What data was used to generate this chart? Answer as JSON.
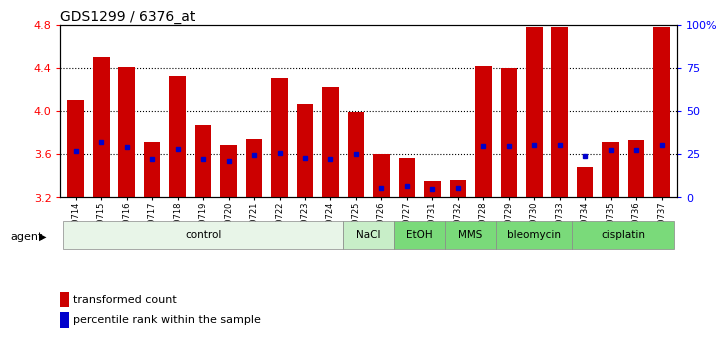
{
  "title": "GDS1299 / 6376_at",
  "samples": [
    "GSM40714",
    "GSM40715",
    "GSM40716",
    "GSM40717",
    "GSM40718",
    "GSM40719",
    "GSM40720",
    "GSM40721",
    "GSM40722",
    "GSM40723",
    "GSM40724",
    "GSM40725",
    "GSM40726",
    "GSM40727",
    "GSM40731",
    "GSM40732",
    "GSM40728",
    "GSM40729",
    "GSM40730",
    "GSM40733",
    "GSM40734",
    "GSM40735",
    "GSM40736",
    "GSM40737"
  ],
  "bar_values": [
    4.1,
    4.5,
    4.41,
    3.71,
    4.33,
    3.87,
    3.69,
    3.74,
    4.31,
    4.07,
    4.22,
    3.99,
    3.6,
    3.57,
    3.35,
    3.36,
    4.42,
    4.4,
    4.78,
    4.78,
    3.48,
    3.71,
    3.73,
    4.78
  ],
  "percentile_values": [
    3.63,
    3.71,
    3.67,
    3.56,
    3.65,
    3.56,
    3.54,
    3.59,
    3.61,
    3.57,
    3.56,
    3.6,
    3.29,
    3.31,
    3.28,
    3.29,
    3.68,
    3.68,
    3.69,
    3.69,
    3.58,
    3.64,
    3.64,
    3.69
  ],
  "groups": [
    {
      "label": "control",
      "start": 0,
      "end": 11,
      "color": "#e8f5e8"
    },
    {
      "label": "NaCl",
      "start": 11,
      "end": 13,
      "color": "#c8eec8"
    },
    {
      "label": "EtOH",
      "start": 13,
      "end": 15,
      "color": "#7ada7a"
    },
    {
      "label": "MMS",
      "start": 15,
      "end": 17,
      "color": "#7ada7a"
    },
    {
      "label": "bleomycin",
      "start": 17,
      "end": 20,
      "color": "#7ada7a"
    },
    {
      "label": "cisplatin",
      "start": 20,
      "end": 24,
      "color": "#7ada7a"
    }
  ],
  "ylim": [
    3.2,
    4.8
  ],
  "y_ticks": [
    3.2,
    3.6,
    4.0,
    4.4,
    4.8
  ],
  "right_ticks": [
    0,
    25,
    50,
    75,
    100
  ],
  "bar_color": "#cc0000",
  "dot_color": "#0000cc",
  "background_color": "#ffffff",
  "title_fontsize": 10,
  "base_value": 3.2
}
